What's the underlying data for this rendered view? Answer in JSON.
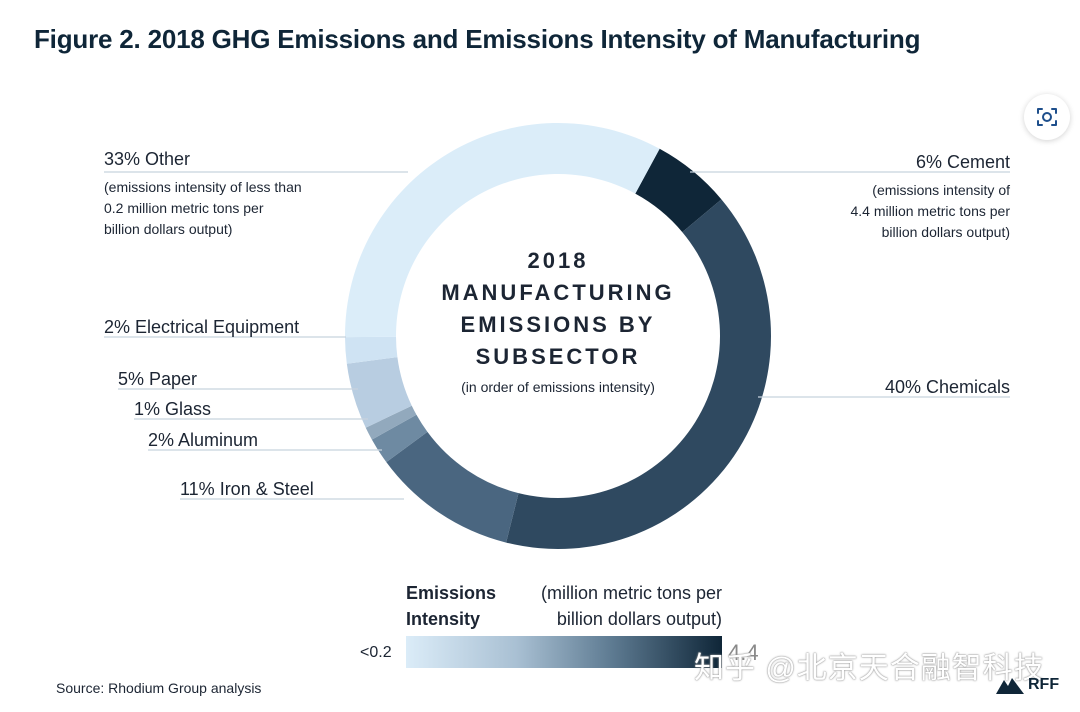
{
  "title": "Figure 2. 2018 GHG Emissions and Emissions Intensity of Manufacturing",
  "chart_data": {
    "type": "pie",
    "variant": "donut",
    "center_text": [
      "2018",
      "MANUFACTURING",
      "EMISSIONS BY",
      "SUBSECTOR"
    ],
    "center_subtext": "(in order of emissions intensity)",
    "slices": [
      {
        "label": "6% Cement",
        "value": 6,
        "color": "#0f2638",
        "note": [
          "(emissions intensity of",
          "4.4 million metric tons per",
          "billion dollars output)"
        ]
      },
      {
        "label": "40% Chemicals",
        "value": 40,
        "color": "#2f4960",
        "note": []
      },
      {
        "label": "11% Iron & Steel",
        "value": 11,
        "color": "#4a6680",
        "note": []
      },
      {
        "label": "2% Aluminum",
        "value": 2,
        "color": "#6e8aa2",
        "note": []
      },
      {
        "label": "1% Glass",
        "value": 1,
        "color": "#92a9bd",
        "note": []
      },
      {
        "label": "5% Paper",
        "value": 5,
        "color": "#b8cde1",
        "note": []
      },
      {
        "label": "2% Electrical Equipment",
        "value": 2,
        "color": "#cfe3f3",
        "note": []
      },
      {
        "label": "33% Other",
        "value": 33,
        "color": "#dbedf9",
        "note": [
          "(emissions intensity of less than",
          "0.2 million metric tons per",
          "billion dollars output)"
        ]
      }
    ],
    "legend": {
      "title": [
        "Emissions",
        "Intensity"
      ],
      "unit": [
        "(million metric tons per",
        "billion dollars output)"
      ],
      "min_label": "<0.2",
      "gradient": [
        "#dbecf8",
        "#a9c0d3",
        "#5e7b92",
        "#0f2638"
      ]
    }
  },
  "source": "Source: Rhodium Group analysis",
  "logo_text": "RFF",
  "watermark": "知乎 @北京天合融智科技",
  "legend_max_fragment": "4.4",
  "icons": {
    "lens": "lens-scan-icon",
    "logo": "rff-mountain-logo"
  }
}
